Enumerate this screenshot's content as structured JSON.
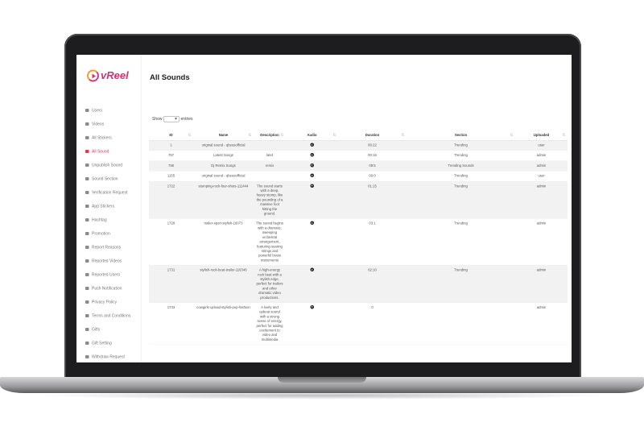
{
  "brand": "vReel",
  "sidebar": [
    "Users",
    "Videos",
    "All Stickers",
    "All Sound",
    "Unpublish Sound",
    "Sound Section",
    "Verification Request",
    "App Stickers",
    "Hashtag",
    "Promotion",
    "Report Reasons",
    "Reported Videos",
    "Reported Users",
    "Push Notification",
    "Privacy Policy",
    "Terms and Conditions",
    "Gifts",
    "Gift Setting",
    "Withdraw Request"
  ],
  "page_title": "All Sounds",
  "show_label": "Show",
  "entries_label": "entries",
  "table": {
    "headers": [
      "ID",
      "Name",
      "Description",
      "Audio",
      "Duration",
      "Section",
      "Uploaded"
    ],
    "rows": [
      {
        "id": "1",
        "name": "original sound - qbeusofficial",
        "duration": "00:22",
        "section": "Trending",
        "uploaded": "user"
      },
      {
        "id": "757",
        "name": "Latest Songs",
        "description": "latet",
        "duration": "00:16",
        "section": "Trending",
        "uploaded": "admin"
      },
      {
        "id": "758",
        "name": "Dj Remix Songs",
        "description": "remix",
        "duration": "09:5",
        "section": "Trending Sounds",
        "uploaded": "admin"
      },
      {
        "id": "1155",
        "name": "original sound - qbeusofficial",
        "duration": "00:0",
        "section": "Trending",
        "uploaded": "user"
      },
      {
        "id": "1722",
        "name": "stomping-rock-four-shots-111444",
        "description": "The sound starts with a deep, heavy stomp, like the pounding of a massive foot hitting the ground.",
        "duration": "01:15",
        "section": "Trending",
        "uploaded": "admin"
      },
      {
        "id": "1728",
        "name": "trailer-sport-stylish-16073",
        "description": "The sound begins with a dramatic, sweeping orchestral arrangement, featuring soaring strings and powerful brass instruments",
        "duration": "03:1",
        "section": "Trending",
        "uploaded": "admin"
      },
      {
        "id": "1731",
        "name": "stylish-rock-beat-trailer-116346",
        "description": "A high-energy rock beat with a stylish edge, perfect for trailers and other dramatic video productions.",
        "duration": "02:10",
        "section": "Trending",
        "uploaded": "admin"
      },
      {
        "id": "1733",
        "name": "cowgirls-upload-stylish-pop-fashion",
        "description": "A lively and upbeat sound with a strong sense of energy, perfect for adding excitement to video and multimedia",
        "duration": "0",
        "uploaded": "admin"
      }
    ]
  }
}
